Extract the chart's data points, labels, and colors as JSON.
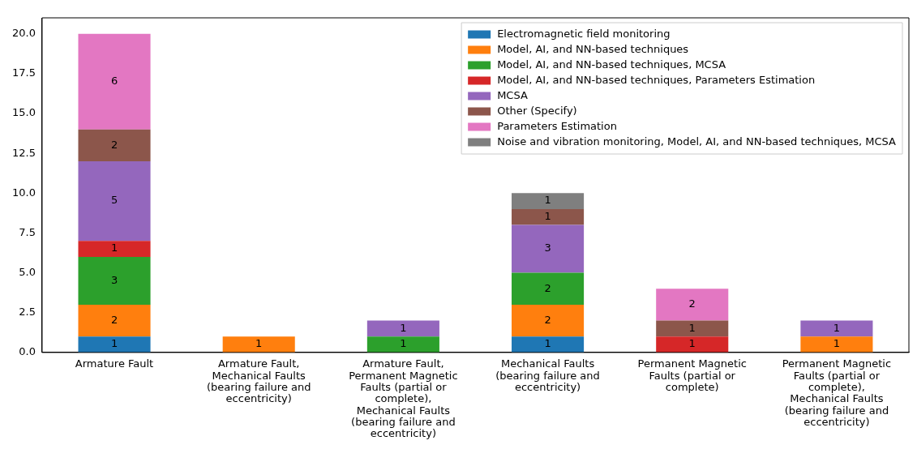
{
  "chart_data": {
    "type": "bar",
    "stacked": true,
    "data_labels": true,
    "legend": "top right",
    "grid": false,
    "categories": [
      "Armature Fault",
      "Armature Fault,\nMechanical Faults\n(bearing failure and\neccentricity)",
      "Armature Fault,\nPermanent Magnetic\nFaults (partial or\ncomplete),\nMechanical Faults\n(bearing failure and\neccentricity)",
      "Mechanical Faults\n(bearing failure and\neccentricity)",
      "Permanent Magnetic\nFaults (partial or\ncomplete)",
      "Permanent Magnetic\nFaults (partial or\ncomplete),\nMechanical Faults\n(bearing failure and\neccentricity)"
    ],
    "ylim": [
      0,
      21
    ],
    "yticks": [
      {
        "value": 0,
        "label": "0.0"
      },
      {
        "value": 2.5,
        "label": "2.5"
      },
      {
        "value": 5,
        "label": "5.0"
      },
      {
        "value": 7.5,
        "label": "7.5"
      },
      {
        "value": 10,
        "label": "10.0"
      },
      {
        "value": 12.5,
        "label": "12.5"
      },
      {
        "value": 15,
        "label": "15.0"
      },
      {
        "value": 17.5,
        "label": "17.5"
      },
      {
        "value": 20,
        "label": "20.0"
      }
    ],
    "series": [
      {
        "name": "Electromagnetic field monitoring",
        "color": "#1f77b4",
        "values": [
          1,
          null,
          null,
          1,
          null,
          null
        ]
      },
      {
        "name": "Model, AI, and NN-based techniques",
        "color": "#ff7f0e",
        "values": [
          2,
          1,
          null,
          2,
          null,
          1
        ]
      },
      {
        "name": "Model, AI, and NN-based techniques, MCSA",
        "color": "#2ca02c",
        "values": [
          3,
          null,
          1,
          2,
          null,
          null
        ]
      },
      {
        "name": "Model, AI, and NN-based techniques, Parameters Estimation",
        "color": "#d62728",
        "values": [
          1,
          null,
          null,
          null,
          1,
          null
        ]
      },
      {
        "name": "MCSA",
        "color": "#9467bd",
        "values": [
          5,
          null,
          1,
          3,
          null,
          1
        ]
      },
      {
        "name": "Other (Specify)",
        "color": "#8c564b",
        "values": [
          2,
          null,
          null,
          1,
          1,
          null
        ]
      },
      {
        "name": "Parameters Estimation",
        "color": "#e377c2",
        "values": [
          6,
          null,
          null,
          null,
          2,
          null
        ]
      },
      {
        "name": "Noise and vibration monitoring, Model, AI, and NN-based techniques, MCSA",
        "color": "#7f7f7f",
        "values": [
          null,
          null,
          null,
          1,
          null,
          null
        ]
      }
    ]
  }
}
